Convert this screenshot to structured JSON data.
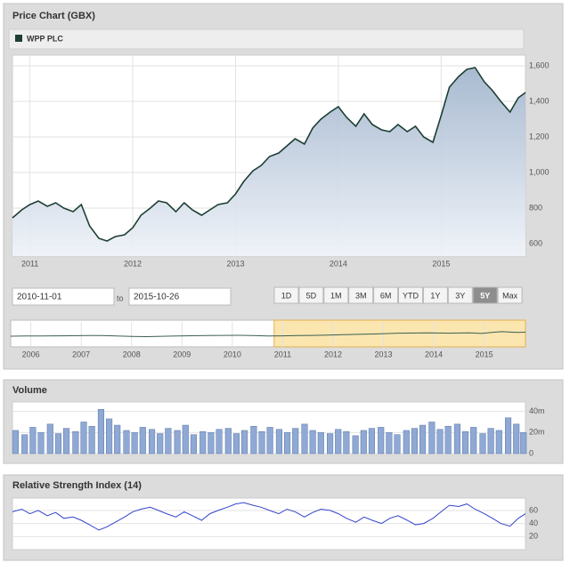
{
  "chart_data": [
    {
      "type": "area",
      "title": "Price Chart (GBX)",
      "series": [
        {
          "name": "WPP PLC",
          "color": "#1d3f34",
          "values": [
            745,
            790,
            820,
            840,
            810,
            830,
            800,
            780,
            820,
            700,
            630,
            615,
            640,
            650,
            690,
            760,
            800,
            840,
            830,
            780,
            830,
            790,
            760,
            790,
            820,
            830,
            880,
            950,
            1010,
            1040,
            1090,
            1110,
            1150,
            1190,
            1160,
            1250,
            1300,
            1340,
            1370,
            1310,
            1260,
            1330,
            1270,
            1240,
            1230,
            1270,
            1230,
            1260,
            1200,
            1170,
            1320,
            1480,
            1540,
            1580,
            1590,
            1510,
            1460,
            1400,
            1340,
            1420,
            1450
          ]
        }
      ],
      "x": [
        2010.83,
        2010.92,
        2011,
        2011.08,
        2011.17,
        2011.25,
        2011.33,
        2011.42,
        2011.5,
        2011.58,
        2011.67,
        2011.75,
        2011.83,
        2011.92,
        2012,
        2012.08,
        2012.17,
        2012.25,
        2012.33,
        2012.42,
        2012.5,
        2012.58,
        2012.67,
        2012.75,
        2012.83,
        2012.92,
        2013,
        2013.08,
        2013.17,
        2013.25,
        2013.33,
        2013.42,
        2013.5,
        2013.58,
        2013.67,
        2013.75,
        2013.83,
        2013.92,
        2014,
        2014.08,
        2014.17,
        2014.25,
        2014.33,
        2014.42,
        2014.5,
        2014.58,
        2014.67,
        2014.75,
        2014.83,
        2014.92,
        2015,
        2015.08,
        2015.17,
        2015.25,
        2015.33,
        2015.42,
        2015.5,
        2015.58,
        2015.67,
        2015.75,
        2015.82
      ],
      "xlim": [
        2010.83,
        2015.82
      ],
      "xticks": [
        2011,
        2012,
        2013,
        2014,
        2015
      ],
      "ylim": [
        530,
        1660
      ],
      "yticks": [
        600,
        800,
        {
          "value": 1000,
          "label": "1,000"
        },
        {
          "value": 1200,
          "label": "1,200"
        },
        {
          "value": 1400,
          "label": "1,400"
        },
        {
          "value": 1600,
          "label": "1,600"
        }
      ],
      "grid": true
    },
    {
      "type": "line",
      "series": [
        {
          "name": null,
          "color": "#3b5f50",
          "values": [
            650,
            680,
            700,
            720,
            740,
            760,
            770,
            700,
            600,
            560,
            620,
            680,
            740,
            760,
            800,
            830,
            780,
            700,
            720,
            760,
            800,
            900,
            1100,
            1250,
            1300,
            1250,
            1300,
            1200,
            1450,
            1550,
            1400,
            1450
          ]
        }
      ],
      "x": [
        2005.6,
        2005.9,
        2006.2,
        2006.5,
        2006.8,
        2007.1,
        2007.4,
        2007.7,
        2008.0,
        2008.3,
        2008.6,
        2008.9,
        2009.2,
        2009.5,
        2009.8,
        2010.1,
        2010.4,
        2010.7,
        2011.0,
        2011.3,
        2011.6,
        2012.0,
        2012.9,
        2013.3,
        2013.9,
        2014.3,
        2014.7,
        2014.95,
        2015.2,
        2015.35,
        2015.65,
        2015.82
      ],
      "xlim": [
        2005.6,
        2015.82
      ],
      "xticks": [
        2006,
        2007,
        2008,
        2009,
        2010,
        2011,
        2012,
        2013,
        2014,
        2015
      ],
      "ylim": [
        -1500,
        3500
      ]
    },
    {
      "type": "bar",
      "title": "Volume",
      "series": [
        {
          "name": null,
          "color": "#8fa8d4",
          "values": [
            22,
            18,
            25,
            20,
            28,
            19,
            24,
            21,
            30,
            26,
            42,
            33,
            27,
            22,
            20,
            25,
            23,
            19,
            24,
            22,
            27,
            18,
            21,
            20,
            23,
            24,
            19,
            22,
            26,
            21,
            25,
            23,
            20,
            24,
            28,
            22,
            20,
            19,
            23,
            21,
            17,
            22,
            24,
            25,
            20,
            18,
            22,
            24,
            27,
            30,
            23,
            26,
            28,
            21,
            25,
            19,
            24,
            22,
            34,
            28,
            20
          ]
        }
      ],
      "x": [
        2010.83,
        2010.92,
        2011,
        2011.08,
        2011.17,
        2011.25,
        2011.33,
        2011.42,
        2011.5,
        2011.58,
        2011.67,
        2011.75,
        2011.83,
        2011.92,
        2012,
        2012.08,
        2012.17,
        2012.25,
        2012.33,
        2012.42,
        2012.5,
        2012.58,
        2012.67,
        2012.75,
        2012.83,
        2012.92,
        2013,
        2013.08,
        2013.17,
        2013.25,
        2013.33,
        2013.42,
        2013.5,
        2013.58,
        2013.67,
        2013.75,
        2013.83,
        2013.92,
        2014,
        2014.08,
        2014.17,
        2014.25,
        2014.33,
        2014.42,
        2014.5,
        2014.58,
        2014.67,
        2014.75,
        2014.83,
        2014.92,
        2015,
        2015.08,
        2015.17,
        2015.25,
        2015.33,
        2015.42,
        2015.5,
        2015.58,
        2015.67,
        2015.75,
        2015.82
      ],
      "xlim": [
        2010.8,
        2015.84
      ],
      "ylim": [
        0,
        49
      ],
      "yticks": [
        0,
        {
          "value": 20,
          "label": "20m"
        },
        {
          "value": 40,
          "label": "40m"
        }
      ]
    },
    {
      "type": "line",
      "title": "Relative Strength Index (14)",
      "series": [
        {
          "name": null,
          "color": "#3344cc",
          "values": [
            58,
            62,
            55,
            60,
            52,
            57,
            48,
            50,
            45,
            38,
            30,
            35,
            42,
            50,
            58,
            62,
            65,
            60,
            55,
            50,
            58,
            52,
            45,
            55,
            60,
            65,
            70,
            72,
            68,
            65,
            60,
            55,
            62,
            58,
            50,
            57,
            62,
            60,
            55,
            48,
            42,
            50,
            45,
            40,
            48,
            52,
            45,
            38,
            40,
            48,
            58,
            68,
            66,
            70,
            62,
            55,
            48,
            40,
            36,
            48,
            55
          ]
        }
      ],
      "x": [
        2010.83,
        2010.92,
        2011,
        2011.08,
        2011.17,
        2011.25,
        2011.33,
        2011.42,
        2011.5,
        2011.58,
        2011.67,
        2011.75,
        2011.83,
        2011.92,
        2012,
        2012.08,
        2012.17,
        2012.25,
        2012.33,
        2012.42,
        2012.5,
        2012.58,
        2012.67,
        2012.75,
        2012.83,
        2012.92,
        2013,
        2013.08,
        2013.17,
        2013.25,
        2013.33,
        2013.42,
        2013.5,
        2013.58,
        2013.67,
        2013.75,
        2013.83,
        2013.92,
        2014,
        2014.08,
        2014.17,
        2014.25,
        2014.33,
        2014.42,
        2014.5,
        2014.58,
        2014.67,
        2014.75,
        2014.83,
        2014.92,
        2015,
        2015.08,
        2015.17,
        2015.25,
        2015.33,
        2015.42,
        2015.5,
        2015.58,
        2015.67,
        2015.75,
        2015.82
      ],
      "xlim": [
        2010.83,
        2015.82
      ],
      "ylim": [
        0,
        79
      ],
      "yticks": [
        20,
        40,
        60
      ]
    }
  ],
  "controls": {
    "from": "2010-11-01",
    "to_label": "to",
    "to": "2015-10-26",
    "ranges": [
      "1D",
      "5D",
      "1M",
      "3M",
      "6M",
      "YTD",
      "1Y",
      "3Y",
      "5Y",
      "Max"
    ],
    "selected": 8
  }
}
